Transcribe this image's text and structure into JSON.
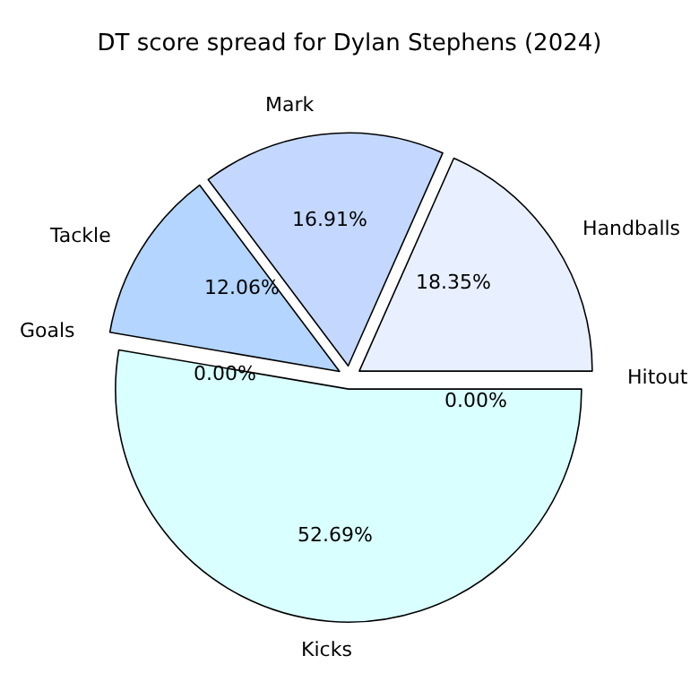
{
  "chart_data": {
    "type": "pie",
    "title": "DT score spread for Dylan Stephens (2024)",
    "categories": [
      "Handballs",
      "Mark",
      "Tackle",
      "Goals",
      "Kicks",
      "Hitout"
    ],
    "values": [
      18.35,
      16.91,
      12.06,
      0.0,
      52.69,
      0.0
    ],
    "value_labels": [
      "18.35%",
      "16.91%",
      "12.06%",
      "0.00%",
      "52.69%",
      "0.00%"
    ],
    "colors": [
      "#e8f0ff",
      "#c4d8ff",
      "#b3d5ff",
      "#a0c8ff",
      "#d9ffff",
      "#f0f8ff"
    ]
  }
}
